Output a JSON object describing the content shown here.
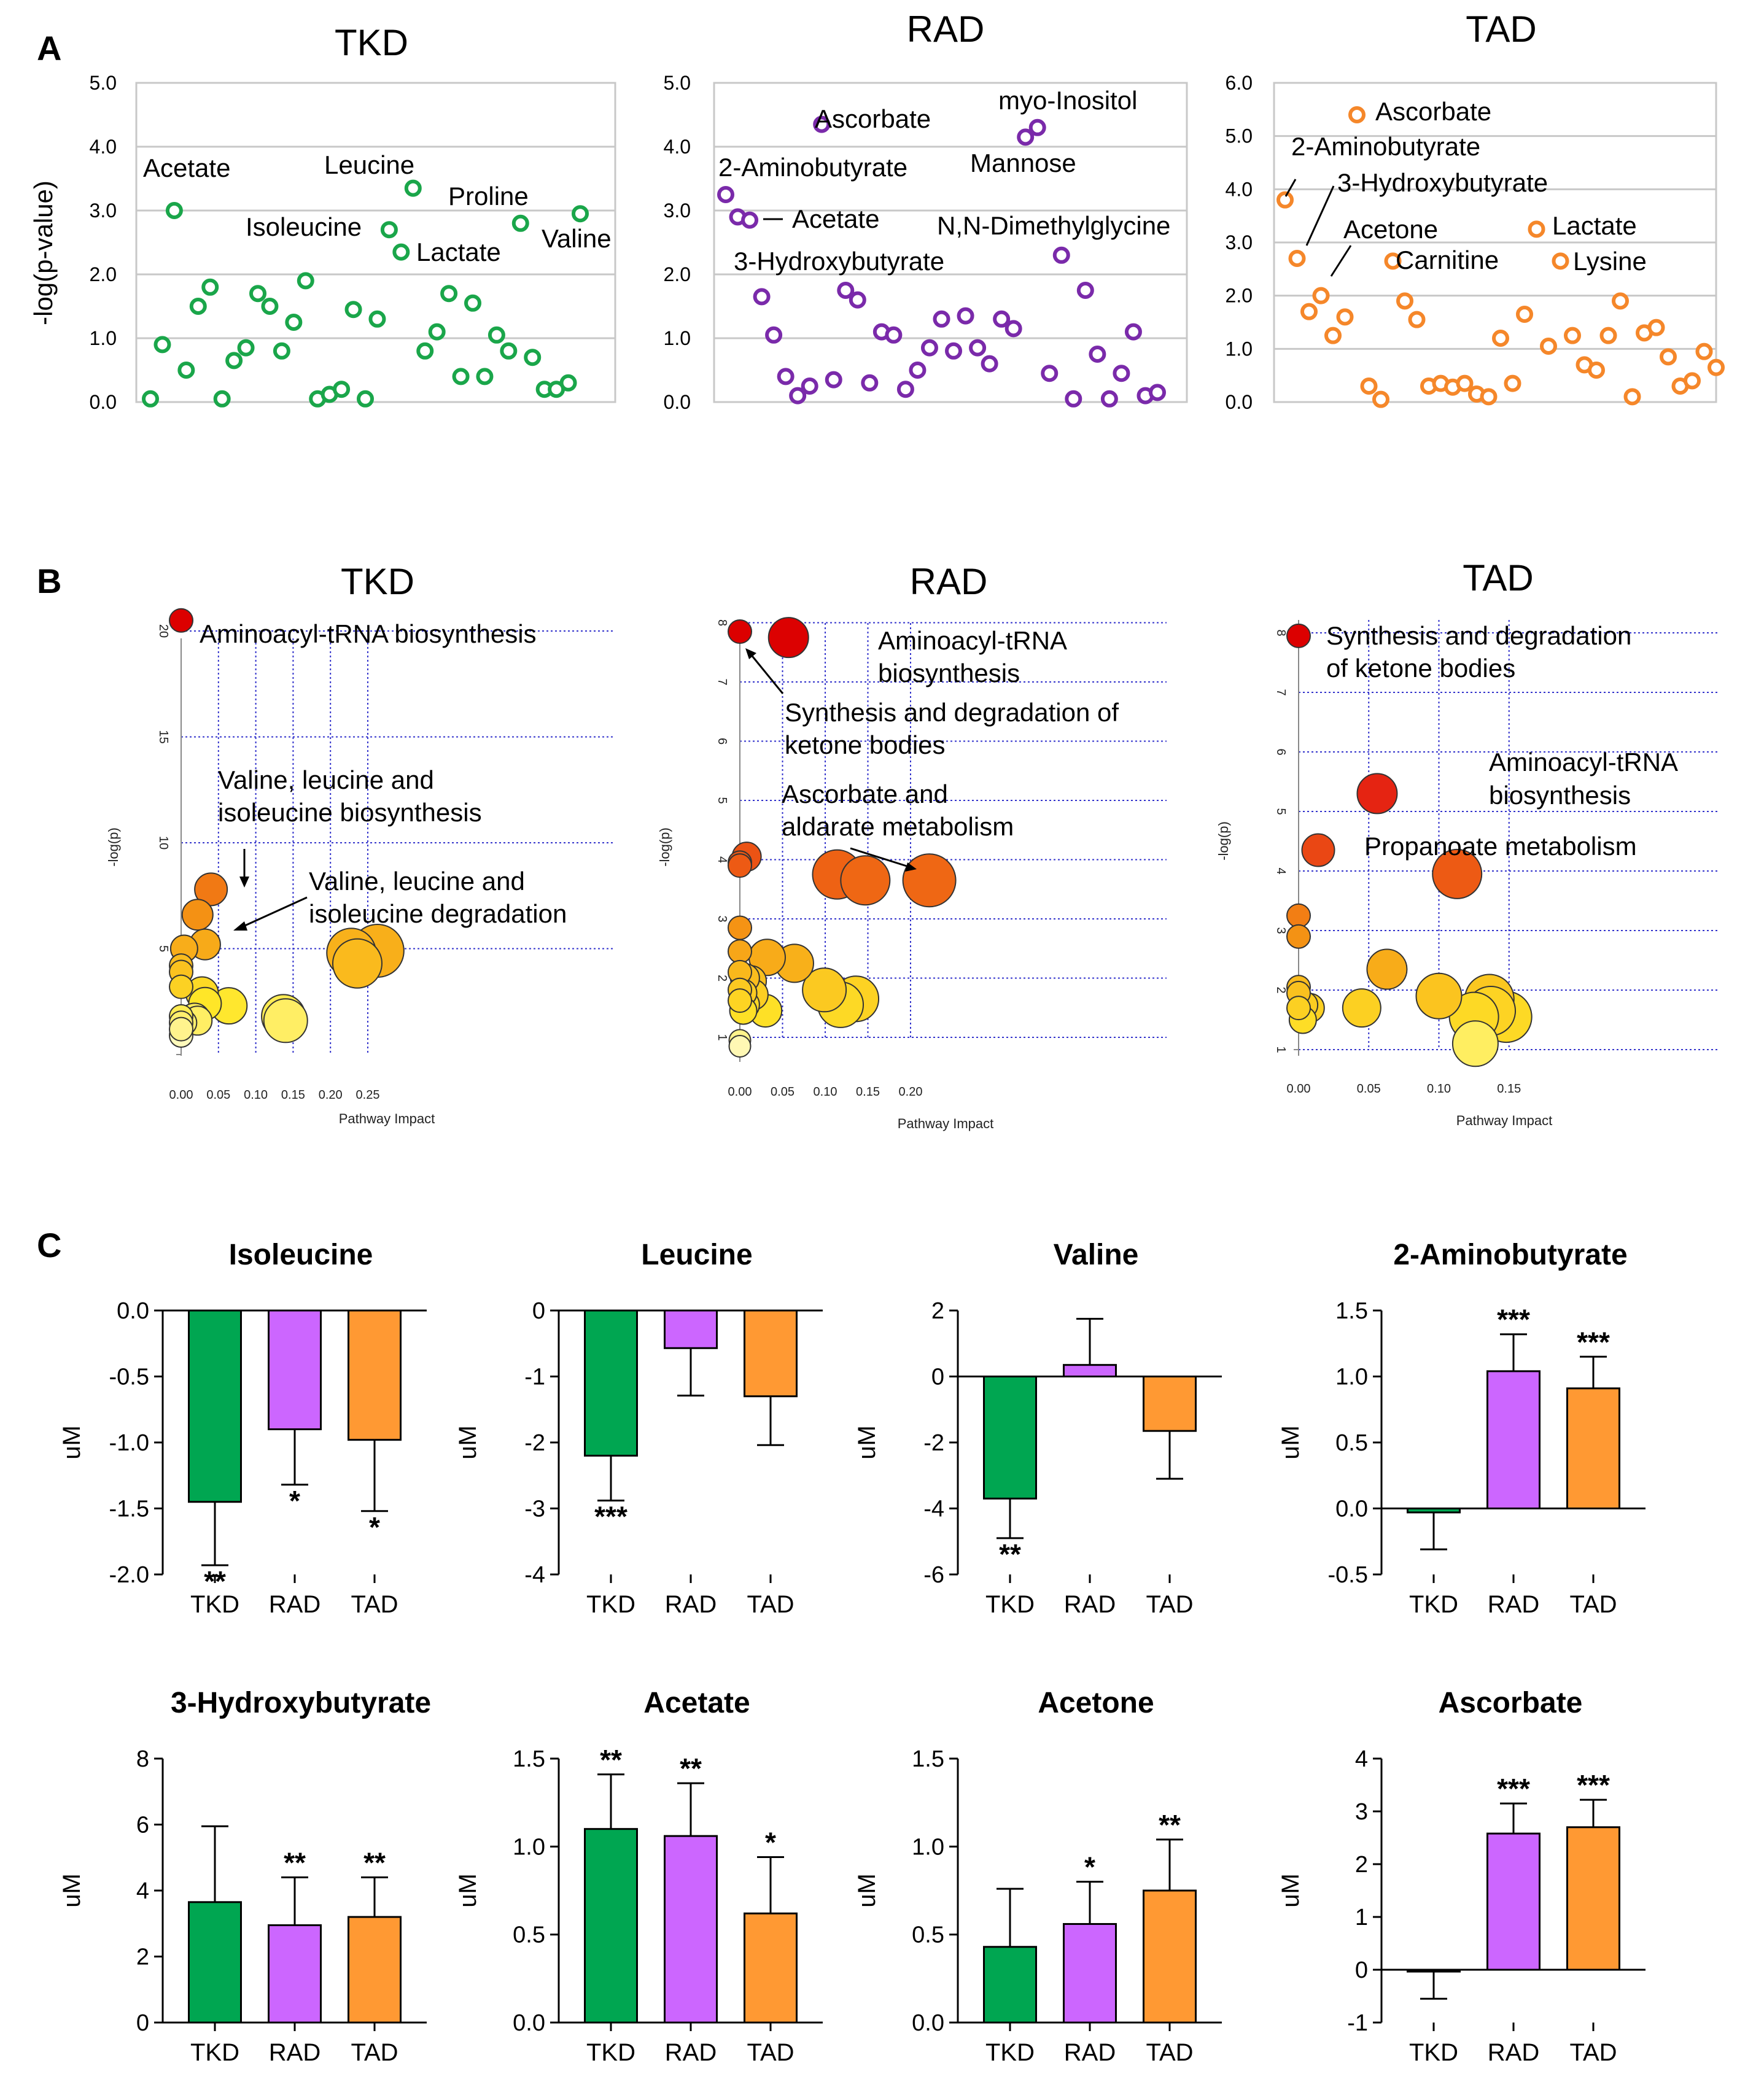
{
  "panel_labels": [
    "A",
    "B",
    "C"
  ],
  "chart_data": [
    {
      "id": "A-TKD",
      "panel": "A",
      "type": "scatter",
      "title": "TKD",
      "ylabel": "-log(p-value)",
      "ylim": [
        0,
        5
      ],
      "yticks": [
        "0.0",
        "1.0",
        "2.0",
        "3.0",
        "4.0",
        "5.0"
      ],
      "color": "#1aa64a",
      "y": [
        0.05,
        0.9,
        3.0,
        0.5,
        1.5,
        1.8,
        0.05,
        0.65,
        0.85,
        1.7,
        1.5,
        0.8,
        1.25,
        1.9,
        0.05,
        0.12,
        0.2,
        1.45,
        0.05,
        1.3,
        2.7,
        2.35,
        3.35,
        0.8,
        1.1,
        1.7,
        0.4,
        1.55,
        0.4,
        1.05,
        0.8,
        2.8,
        0.7,
        0.2,
        0.2,
        0.3,
        2.95
      ],
      "annotations": [
        "Acetate",
        "Leucine",
        "Proline",
        "Isoleucine",
        "Lactate",
        "Valine"
      ]
    },
    {
      "id": "A-RAD",
      "panel": "A",
      "type": "scatter",
      "title": "RAD",
      "ylabel": "",
      "ylim": [
        0,
        5
      ],
      "yticks": [
        "0.0",
        "1.0",
        "2.0",
        "3.0",
        "4.0",
        "5.0"
      ],
      "color": "#7a2aaa",
      "y": [
        3.25,
        2.9,
        2.85,
        1.65,
        1.05,
        0.4,
        0.1,
        0.25,
        4.35,
        0.35,
        1.75,
        1.6,
        0.3,
        1.1,
        1.05,
        0.2,
        0.5,
        0.85,
        1.3,
        0.8,
        1.35,
        0.85,
        0.6,
        1.3,
        1.15,
        4.15,
        4.3,
        0.45,
        2.3,
        0.05,
        1.75,
        0.75,
        0.05,
        0.45,
        1.1,
        0.1,
        0.15
      ],
      "annotations": [
        "Ascorbate",
        "myo-Inositol",
        "Mannose",
        "2-Aminobutyrate",
        "Acetate",
        "3-Hydroxybutyrate",
        "N,N-Dimethylglycine"
      ]
    },
    {
      "id": "A-TAD",
      "panel": "A",
      "type": "scatter",
      "title": "TAD",
      "ylabel": "",
      "ylim": [
        0,
        6
      ],
      "yticks": [
        "0.0",
        "1.0",
        "2.0",
        "3.0",
        "4.0",
        "5.0",
        "6.0"
      ],
      "color": "#f5872a",
      "y": [
        3.8,
        2.7,
        1.7,
        2.0,
        1.25,
        1.6,
        5.4,
        0.3,
        0.05,
        2.65,
        1.9,
        1.55,
        0.3,
        0.35,
        0.28,
        0.35,
        0.15,
        0.1,
        1.2,
        0.35,
        1.65,
        3.25,
        1.05,
        2.65,
        1.25,
        0.7,
        0.6,
        1.25,
        1.9,
        0.1,
        1.3,
        1.4,
        0.85,
        0.3,
        0.4,
        0.95,
        0.65
      ],
      "annotations": [
        "Ascorbate",
        "2-Aminobutyrate",
        "3-Hydroxybutyrate",
        "Acetone",
        "Lactate",
        "Carnitine",
        "Lysine"
      ]
    },
    {
      "id": "B-TKD",
      "panel": "B",
      "type": "scatter",
      "title": "TKD",
      "xlabel": "Pathway Impact",
      "ylabel": "-log(p)",
      "xticks": [
        "0.00",
        "0.05",
        "0.10",
        "0.15",
        "0.20",
        "0.25"
      ],
      "yticks": [
        "5",
        "10",
        "15",
        "20"
      ],
      "points": [
        {
          "x": 0.0,
          "y": 20.5,
          "r": 0.3
        },
        {
          "x": 0.04,
          "y": 7.8,
          "r": 0.55
        },
        {
          "x": 0.022,
          "y": 6.6,
          "r": 0.5
        },
        {
          "x": 0.032,
          "y": 5.2,
          "r": 0.5
        },
        {
          "x": 0.004,
          "y": 5.0,
          "r": 0.4
        },
        {
          "x": 0.0,
          "y": 4.2,
          "r": 0.3
        },
        {
          "x": 0.0,
          "y": 3.9,
          "r": 0.3
        },
        {
          "x": 0.0,
          "y": 3.2,
          "r": 0.3
        },
        {
          "x": 0.028,
          "y": 2.9,
          "r": 0.55
        },
        {
          "x": 0.032,
          "y": 2.4,
          "r": 0.55
        },
        {
          "x": 0.064,
          "y": 2.3,
          "r": 0.65
        },
        {
          "x": 0.0,
          "y": 1.8,
          "r": 0.3
        },
        {
          "x": 0.0,
          "y": 1.5,
          "r": 0.3
        },
        {
          "x": 0.018,
          "y": 1.7,
          "r": 0.5
        },
        {
          "x": 0.022,
          "y": 1.6,
          "r": 0.45
        },
        {
          "x": 0.004,
          "y": 1.5,
          "r": 0.35
        },
        {
          "x": 0.0,
          "y": 0.9,
          "r": 0.3
        },
        {
          "x": 0.0,
          "y": 1.2,
          "r": 0.3
        },
        {
          "x": 0.137,
          "y": 1.8,
          "r": 0.85
        },
        {
          "x": 0.14,
          "y": 1.6,
          "r": 0.85
        },
        {
          "x": 0.228,
          "y": 4.8,
          "r": 1.0
        },
        {
          "x": 0.236,
          "y": 4.3,
          "r": 1.0
        },
        {
          "x": 0.263,
          "y": 4.9,
          "r": 1.1
        }
      ],
      "annotations": [
        "Aminoacyl-tRNA biosynthesis",
        "Valine, leucine and",
        "isoleucine biosynthesis",
        "Valine, leucine and",
        "isoleucine degradation"
      ]
    },
    {
      "id": "B-RAD",
      "panel": "B",
      "type": "scatter",
      "title": "RAD",
      "xlabel": "Pathway Impact",
      "ylabel": "-log(p)",
      "xticks": [
        "0.00",
        "0.05",
        "0.10",
        "0.15",
        "0.20"
      ],
      "yticks": [
        "1",
        "2",
        "3",
        "4",
        "5",
        "6",
        "7",
        "8"
      ],
      "points": [
        {
          "x": 0.0,
          "y": 7.85,
          "r": 0.3
        },
        {
          "x": 0.057,
          "y": 7.75,
          "r": 0.75
        },
        {
          "x": 0.008,
          "y": 4.05,
          "r": 0.45
        },
        {
          "x": 0.0,
          "y": 3.95,
          "r": 0.3
        },
        {
          "x": 0.0,
          "y": 3.9,
          "r": 0.3
        },
        {
          "x": 0.114,
          "y": 3.75,
          "r": 1.0
        },
        {
          "x": 0.147,
          "y": 3.65,
          "r": 1.0
        },
        {
          "x": 0.222,
          "y": 3.65,
          "r": 1.1
        },
        {
          "x": 0.0,
          "y": 2.85,
          "r": 0.3
        },
        {
          "x": 0.0,
          "y": 2.45,
          "r": 0.3
        },
        {
          "x": 0.032,
          "y": 2.35,
          "r": 0.65
        },
        {
          "x": 0.064,
          "y": 2.25,
          "r": 0.7
        },
        {
          "x": 0.0,
          "y": 2.1,
          "r": 0.3
        },
        {
          "x": 0.006,
          "y": 2.0,
          "r": 0.45
        },
        {
          "x": 0.013,
          "y": 1.95,
          "r": 0.5
        },
        {
          "x": 0.0,
          "y": 1.8,
          "r": 0.3
        },
        {
          "x": 0.004,
          "y": 1.75,
          "r": 0.4
        },
        {
          "x": 0.015,
          "y": 1.72,
          "r": 0.5
        },
        {
          "x": 0.0,
          "y": 1.62,
          "r": 0.3
        },
        {
          "x": 0.006,
          "y": 1.55,
          "r": 0.45
        },
        {
          "x": 0.004,
          "y": 1.45,
          "r": 0.4
        },
        {
          "x": 0.03,
          "y": 1.45,
          "r": 0.55
        },
        {
          "x": 0.099,
          "y": 1.8,
          "r": 0.85
        },
        {
          "x": 0.136,
          "y": 1.65,
          "r": 0.9
        },
        {
          "x": 0.118,
          "y": 1.55,
          "r": 0.9
        },
        {
          "x": 0.0,
          "y": 0.95,
          "r": 0.25
        },
        {
          "x": 0.0,
          "y": 0.85,
          "r": 0.25
        }
      ],
      "annotations": [
        "Aminoacyl-tRNA",
        "biosynthesis",
        "Synthesis and degradation of",
        "ketone bodies",
        "Ascorbate and",
        "aldarate metabolism"
      ]
    },
    {
      "id": "B-TAD",
      "panel": "B",
      "type": "scatter",
      "title": "TAD",
      "xlabel": "Pathway Impact",
      "ylabel": "-log(p)",
      "xticks": [
        "0.00",
        "0.05",
        "0.10",
        "0.15"
      ],
      "yticks": [
        "1",
        "2",
        "3",
        "4",
        "5",
        "6",
        "7",
        "8"
      ],
      "points": [
        {
          "x": 0.0,
          "y": 7.95,
          "r": 0.3
        },
        {
          "x": 0.056,
          "y": 5.3,
          "r": 0.75
        },
        {
          "x": 0.014,
          "y": 4.35,
          "r": 0.55
        },
        {
          "x": 0.113,
          "y": 3.95,
          "r": 1.0
        },
        {
          "x": 0.0,
          "y": 3.25,
          "r": 0.3
        },
        {
          "x": 0.0,
          "y": 2.9,
          "r": 0.3
        },
        {
          "x": 0.063,
          "y": 2.35,
          "r": 0.75
        },
        {
          "x": 0.0,
          "y": 2.05,
          "r": 0.3
        },
        {
          "x": 0.0,
          "y": 1.95,
          "r": 0.3
        },
        {
          "x": 0.1,
          "y": 1.9,
          "r": 0.9
        },
        {
          "x": 0.136,
          "y": 1.85,
          "r": 1.0
        },
        {
          "x": 0.0,
          "y": 1.7,
          "r": 0.3
        },
        {
          "x": 0.004,
          "y": 1.75,
          "r": 0.4
        },
        {
          "x": 0.008,
          "y": 1.7,
          "r": 0.45
        },
        {
          "x": 0.045,
          "y": 1.7,
          "r": 0.7
        },
        {
          "x": 0.137,
          "y": 1.65,
          "r": 1.0
        },
        {
          "x": 0.003,
          "y": 1.5,
          "r": 0.4
        },
        {
          "x": 0.125,
          "y": 1.55,
          "r": 1.0
        },
        {
          "x": 0.148,
          "y": 1.55,
          "r": 1.05
        },
        {
          "x": 0.126,
          "y": 1.1,
          "r": 0.9
        }
      ],
      "annotations": [
        "Synthesis and degradation",
        "of ketone bodies",
        "Aminoacyl-tRNA",
        "biosynthesis",
        "Propanoate metabolism"
      ]
    },
    {
      "id": "C1",
      "panel": "C",
      "type": "bar",
      "title": "Isoleucine",
      "ylabel": "uM",
      "categories": [
        "TKD",
        "RAD",
        "TAD"
      ],
      "values": [
        -1.45,
        -0.9,
        -0.98
      ],
      "errors": [
        0.48,
        0.42,
        0.54
      ],
      "sig": [
        "**",
        "*",
        "*"
      ],
      "ylim": [
        -2.0,
        0.0
      ],
      "yticks": [
        -2.0,
        -1.5,
        -1.0,
        -0.5,
        0.0
      ],
      "yticklabels": [
        "-2.0",
        "-1.5",
        "-1.0",
        "-0.5",
        "0.0"
      ]
    },
    {
      "id": "C2",
      "panel": "C",
      "type": "bar",
      "title": "Leucine",
      "ylabel": "uM",
      "categories": [
        "TKD",
        "RAD",
        "TAD"
      ],
      "values": [
        -2.2,
        -0.57,
        -1.3
      ],
      "errors": [
        0.68,
        0.72,
        0.74
      ],
      "sig": [
        "***",
        "",
        ""
      ],
      "ylim": [
        -4,
        0
      ],
      "yticks": [
        -4,
        -3,
        -2,
        -1,
        0
      ],
      "yticklabels": [
        "-4",
        "-3",
        "-2",
        "-1",
        "0"
      ]
    },
    {
      "id": "C3",
      "panel": "C",
      "type": "bar",
      "title": "Valine",
      "ylabel": "uM",
      "categories": [
        "TKD",
        "RAD",
        "TAD"
      ],
      "values": [
        -3.7,
        0.35,
        -1.65
      ],
      "errors": [
        1.2,
        1.4,
        1.45
      ],
      "sig": [
        "**",
        "",
        ""
      ],
      "ylim": [
        -6,
        2
      ],
      "yticks": [
        -6,
        -4,
        -2,
        0,
        2
      ],
      "yticklabels": [
        "-6",
        "-4",
        "-2",
        "0",
        "2"
      ]
    },
    {
      "id": "C4",
      "panel": "C",
      "type": "bar",
      "title": "2-Aminobutyrate",
      "ylabel": "uM",
      "categories": [
        "TKD",
        "RAD",
        "TAD"
      ],
      "values": [
        -0.03,
        1.04,
        0.91
      ],
      "errors": [
        0.28,
        0.28,
        0.24
      ],
      "sig": [
        "",
        "***",
        "***"
      ],
      "ylim": [
        -0.5,
        1.5
      ],
      "yticks": [
        -0.5,
        0.0,
        0.5,
        1.0,
        1.5
      ],
      "yticklabels": [
        "-0.5",
        "0.0",
        "0.5",
        "1.0",
        "1.5"
      ]
    },
    {
      "id": "C5",
      "panel": "C",
      "type": "bar",
      "title": "3-Hydroxybutyrate",
      "ylabel": "uM",
      "categories": [
        "TKD",
        "RAD",
        "TAD"
      ],
      "values": [
        3.65,
        2.95,
        3.2
      ],
      "errors": [
        2.3,
        1.45,
        1.2
      ],
      "sig": [
        "",
        "**",
        "**"
      ],
      "ylim": [
        0,
        8
      ],
      "yticks": [
        0,
        2,
        4,
        6,
        8
      ],
      "yticklabels": [
        "0",
        "2",
        "4",
        "6",
        "8"
      ]
    },
    {
      "id": "C6",
      "panel": "C",
      "type": "bar",
      "title": "Acetate",
      "ylabel": "uM",
      "categories": [
        "TKD",
        "RAD",
        "TAD"
      ],
      "values": [
        1.1,
        1.06,
        0.62
      ],
      "errors": [
        0.31,
        0.3,
        0.32
      ],
      "sig": [
        "**",
        "**",
        "*"
      ],
      "ylim": [
        0.0,
        1.5
      ],
      "yticks": [
        0.0,
        0.5,
        1.0,
        1.5
      ],
      "yticklabels": [
        "0.0",
        "0.5",
        "1.0",
        "1.5"
      ]
    },
    {
      "id": "C7",
      "panel": "C",
      "type": "bar",
      "title": "Acetone",
      "ylabel": "uM",
      "categories": [
        "TKD",
        "RAD",
        "TAD"
      ],
      "values": [
        0.43,
        0.56,
        0.75
      ],
      "errors": [
        0.33,
        0.24,
        0.29
      ],
      "sig": [
        "",
        "*",
        "**"
      ],
      "ylim": [
        0.0,
        1.5
      ],
      "yticks": [
        0.0,
        0.5,
        1.0,
        1.5
      ],
      "yticklabels": [
        "0.0",
        "0.5",
        "1.0",
        "1.5"
      ]
    },
    {
      "id": "C8",
      "panel": "C",
      "type": "bar",
      "title": "Ascorbate",
      "ylabel": "uM",
      "categories": [
        "TKD",
        "RAD",
        "TAD"
      ],
      "values": [
        -0.03,
        2.58,
        2.7
      ],
      "errors": [
        0.52,
        0.57,
        0.52
      ],
      "sig": [
        "",
        "***",
        "***"
      ],
      "ylim": [
        -1,
        4
      ],
      "yticks": [
        -1,
        0,
        1,
        2,
        3,
        4
      ],
      "yticklabels": [
        "-1",
        "0",
        "1",
        "2",
        "3",
        "4"
      ]
    }
  ],
  "colors": {
    "tkd": "#00a651",
    "rad": "#cc66ff",
    "tad": "#ff9933",
    "tkd_marker": "#1aa64a",
    "rad_marker": "#7a2aaa",
    "tad_marker": "#f5872a",
    "grid_blue": "#3333cc",
    "grid_gray": "#c8c8c8"
  }
}
